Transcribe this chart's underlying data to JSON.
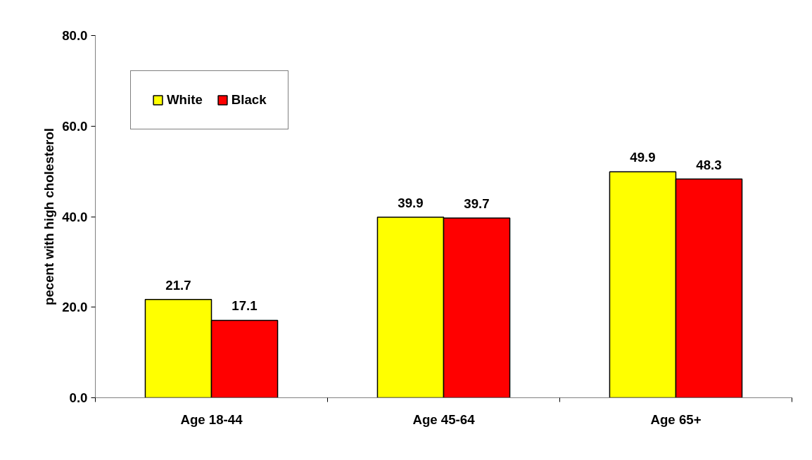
{
  "chart_data": {
    "type": "bar",
    "ylabel": "pecent with high cholesterol",
    "categories": [
      "Age 18-44",
      "Age 45-64",
      "Age 65+"
    ],
    "series": [
      {
        "name": "White",
        "color": "#ffff00",
        "values": [
          21.7,
          39.9,
          49.9
        ]
      },
      {
        "name": "Black",
        "color": "#ff0000",
        "values": [
          17.1,
          39.7,
          48.3
        ]
      }
    ],
    "ylim": [
      0,
      80
    ],
    "yticks": [
      {
        "value": 0,
        "label": "0.0"
      },
      {
        "value": 20,
        "label": "20.0"
      },
      {
        "value": 40,
        "label": "40.0"
      },
      {
        "value": 60,
        "label": "60.0"
      },
      {
        "value": 80,
        "label": "80.0"
      }
    ],
    "grid": false,
    "legend": "top left",
    "data_labels": true
  }
}
